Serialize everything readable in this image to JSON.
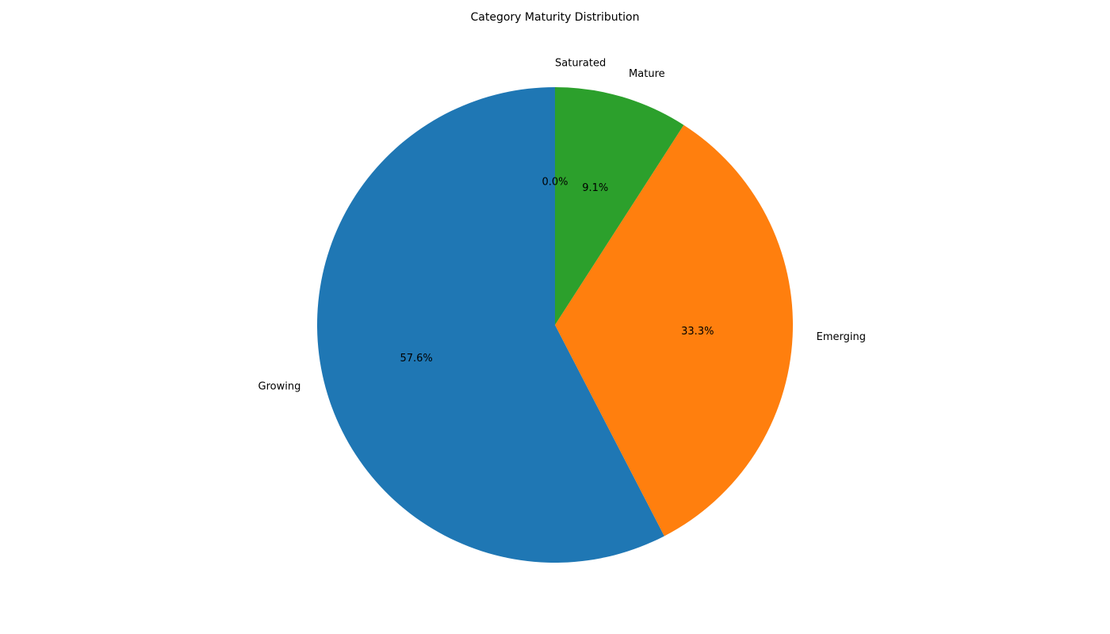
{
  "chart_data": {
    "type": "pie",
    "title": "Category Maturity Distribution",
    "start_angle_deg": 90,
    "direction": "counterclockwise",
    "slices": [
      {
        "label": "Growing",
        "value": 57.6,
        "pct_label": "57.6%",
        "color": "#1f77b4"
      },
      {
        "label": "Emerging",
        "value": 33.3,
        "pct_label": "33.3%",
        "color": "#ff7f0e"
      },
      {
        "label": "Mature",
        "value": 9.1,
        "pct_label": "9.1%",
        "color": "#2ca02c"
      },
      {
        "label": "Saturated",
        "value": 0.0,
        "pct_label": "0.0%",
        "color": "#d62728"
      }
    ]
  }
}
